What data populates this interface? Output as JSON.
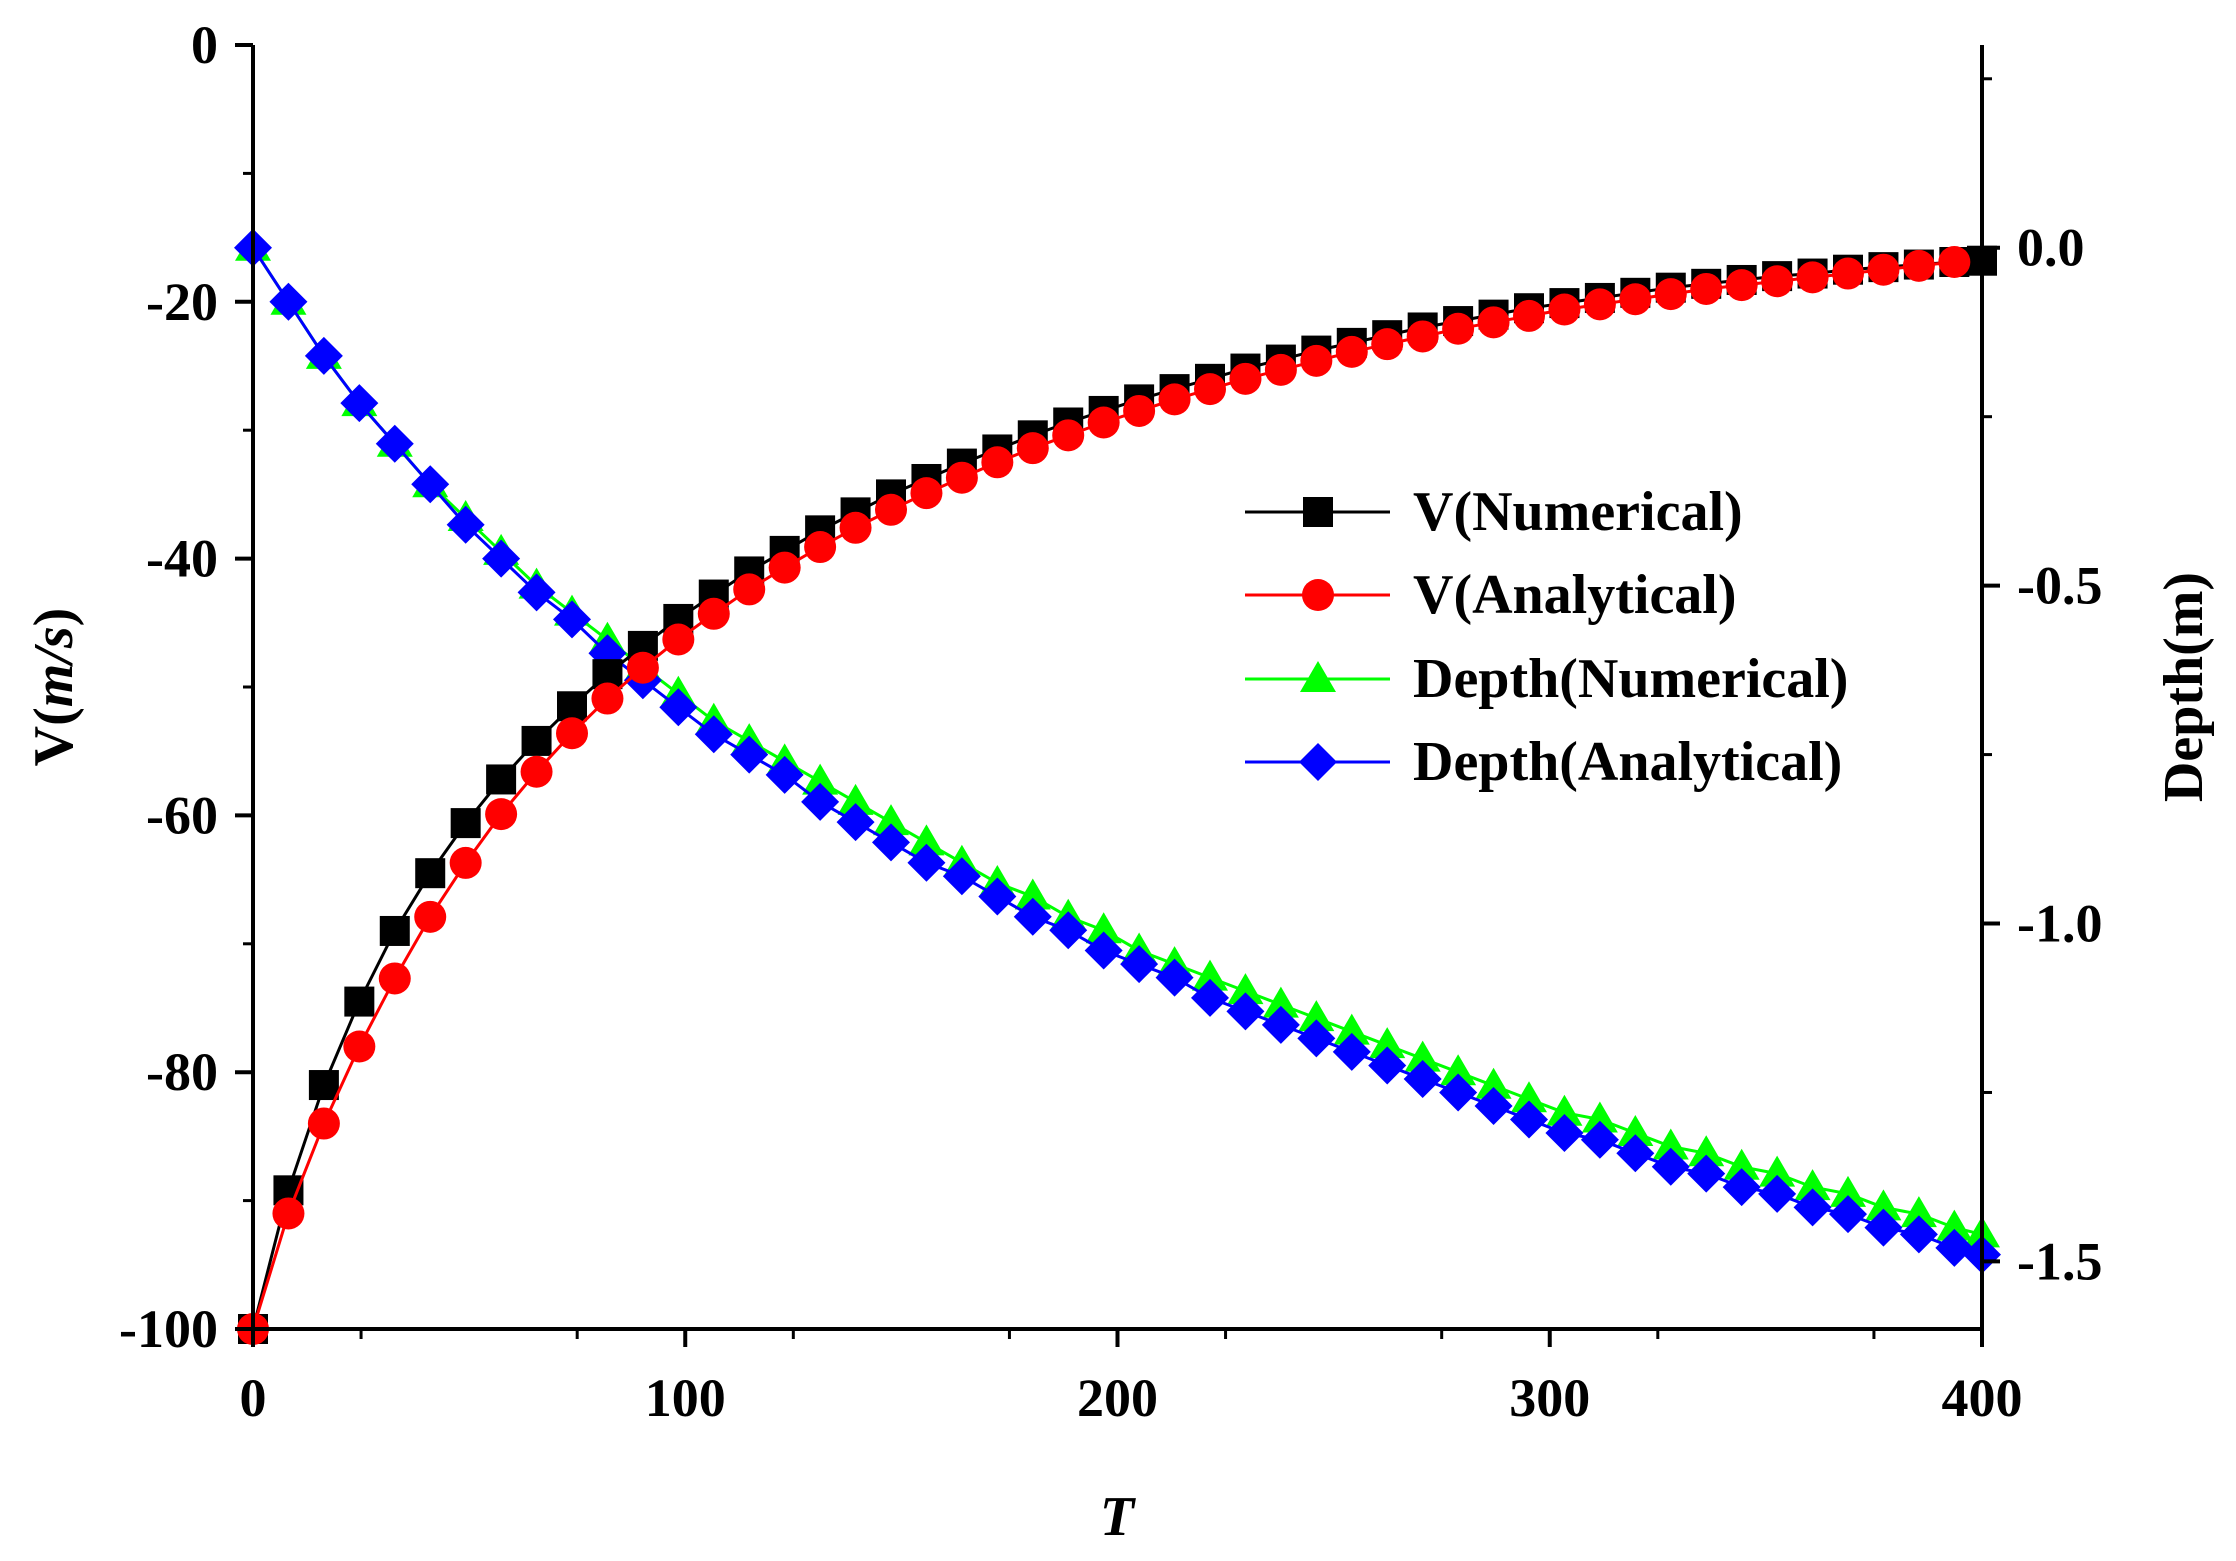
{
  "chart_data": {
    "type": "line",
    "title": "",
    "x_axis": {
      "label": "T",
      "range": [
        0,
        400
      ],
      "ticks": [
        0,
        100,
        200,
        300,
        400
      ],
      "tick_labels": [
        "0",
        "100",
        "200",
        "300",
        "400"
      ]
    },
    "y_left": {
      "label_prefix": "V(",
      "label_italic": "m/s",
      "label_suffix": ")",
      "range": [
        -100,
        0
      ],
      "ticks": [
        0,
        -20,
        -40,
        -60,
        -80,
        -100
      ],
      "tick_labels": [
        "0",
        "-20",
        "-40",
        "-60",
        "-80",
        "-100"
      ]
    },
    "y_right": {
      "label": "Depth(m)",
      "range": [
        -1.6,
        0.3
      ],
      "ticks": [
        0.0,
        -0.5,
        -1.0,
        -1.5
      ],
      "tick_labels": [
        "0.0",
        "-0.5",
        "-1.0",
        "-1.5"
      ]
    },
    "legend_position": "center-right",
    "grid": false,
    "series": [
      {
        "name": "V(Numerical)",
        "axis": "left",
        "color": "#000000",
        "marker": "square",
        "x": [
          0,
          8.2,
          16.4,
          24.6,
          32.8,
          41.0,
          49.2,
          57.4,
          65.6,
          73.8,
          82.0,
          90.2,
          98.4,
          106.6,
          114.8,
          123.0,
          131.2,
          139.4,
          147.6,
          155.8,
          164.0,
          172.2,
          180.4,
          188.6,
          196.8,
          205.0,
          213.2,
          221.4,
          229.6,
          237.8,
          246.0,
          254.2,
          262.4,
          270.6,
          278.8,
          287.0,
          295.2,
          303.4,
          311.6,
          319.8,
          328.0,
          336.2,
          344.4,
          352.6,
          360.8,
          369.0,
          377.2,
          385.4,
          393.6,
          400
        ],
        "values": [
          -100.0,
          -89.2,
          -81.0,
          -74.5,
          -69.0,
          -64.5,
          -60.6,
          -57.2,
          -54.2,
          -51.5,
          -49.0,
          -46.8,
          -44.7,
          -42.8,
          -41.0,
          -39.4,
          -37.8,
          -36.4,
          -35.0,
          -33.8,
          -32.6,
          -31.5,
          -30.4,
          -29.4,
          -28.5,
          -27.6,
          -26.8,
          -26.0,
          -25.2,
          -24.5,
          -23.8,
          -23.2,
          -22.6,
          -22.0,
          -21.5,
          -21.0,
          -20.5,
          -20.1,
          -19.7,
          -19.3,
          -18.9,
          -18.6,
          -18.3,
          -18.0,
          -17.8,
          -17.5,
          -17.3,
          -17.1,
          -16.9,
          -16.8
        ]
      },
      {
        "name": "V(Analytical)",
        "axis": "left",
        "color": "#ff0000",
        "marker": "circle",
        "x": [
          0,
          8.2,
          16.4,
          24.6,
          32.8,
          41.0,
          49.2,
          57.4,
          65.6,
          73.8,
          82.0,
          90.2,
          98.4,
          106.6,
          114.8,
          123.0,
          131.2,
          139.4,
          147.6,
          155.8,
          164.0,
          172.2,
          180.4,
          188.6,
          196.8,
          205.0,
          213.2,
          221.4,
          229.6,
          237.8,
          246.0,
          254.2,
          262.4,
          270.6,
          278.8,
          287.0,
          295.2,
          303.4,
          311.6,
          319.8,
          328.0,
          336.2,
          344.4,
          352.6,
          360.8,
          369.0,
          377.2,
          385.4,
          393.6
        ],
        "values": [
          -100.0,
          -91.0,
          -84.0,
          -78.0,
          -72.7,
          -67.9,
          -63.7,
          -59.9,
          -56.6,
          -53.6,
          -50.9,
          -48.5,
          -46.3,
          -44.3,
          -42.4,
          -40.7,
          -39.1,
          -37.6,
          -36.2,
          -34.9,
          -33.7,
          -32.5,
          -31.4,
          -30.4,
          -29.4,
          -28.5,
          -27.6,
          -26.8,
          -26.0,
          -25.3,
          -24.6,
          -23.9,
          -23.3,
          -22.7,
          -22.1,
          -21.6,
          -21.1,
          -20.6,
          -20.2,
          -19.8,
          -19.4,
          -19.0,
          -18.7,
          -18.4,
          -18.1,
          -17.8,
          -17.5,
          -17.2,
          -16.9
        ]
      },
      {
        "name": "Depth(Numerical)",
        "axis": "right",
        "color": "#00ff00",
        "marker": "triangle",
        "x": [
          0,
          8.2,
          16.4,
          24.6,
          32.8,
          41.0,
          49.2,
          57.4,
          65.6,
          73.8,
          82.0,
          90.2,
          98.4,
          106.6,
          114.8,
          123.0,
          131.2,
          139.4,
          147.6,
          155.8,
          164.0,
          172.2,
          180.4,
          188.6,
          196.8,
          205.0,
          213.2,
          221.4,
          229.6,
          237.8,
          246.0,
          254.2,
          262.4,
          270.6,
          278.8,
          287.0,
          295.2,
          303.4,
          311.6,
          319.8,
          328.0,
          336.2,
          344.4,
          352.6,
          360.8,
          369.0,
          377.2,
          385.4,
          393.6,
          400
        ],
        "values": [
          0.0,
          -0.08,
          -0.16,
          -0.23,
          -0.29,
          -0.35,
          -0.4,
          -0.45,
          -0.5,
          -0.54,
          -0.58,
          -0.62,
          -0.66,
          -0.7,
          -0.73,
          -0.76,
          -0.79,
          -0.82,
          -0.85,
          -0.88,
          -0.91,
          -0.94,
          -0.96,
          -0.99,
          -1.01,
          -1.04,
          -1.06,
          -1.08,
          -1.1,
          -1.12,
          -1.14,
          -1.16,
          -1.18,
          -1.2,
          -1.22,
          -1.24,
          -1.26,
          -1.28,
          -1.29,
          -1.31,
          -1.33,
          -1.34,
          -1.36,
          -1.37,
          -1.39,
          -1.4,
          -1.42,
          -1.43,
          -1.45,
          -1.46
        ]
      },
      {
        "name": "Depth(Analytical)",
        "axis": "right",
        "color": "#0000ff",
        "marker": "diamond",
        "x": [
          0,
          8.2,
          16.4,
          24.6,
          32.8,
          41.0,
          49.2,
          57.4,
          65.6,
          73.8,
          82.0,
          90.2,
          98.4,
          106.6,
          114.8,
          123.0,
          131.2,
          139.4,
          147.6,
          155.8,
          164.0,
          172.2,
          180.4,
          188.6,
          196.8,
          205.0,
          213.2,
          221.4,
          229.6,
          237.8,
          246.0,
          254.2,
          262.4,
          270.6,
          278.8,
          287.0,
          295.2,
          303.4,
          311.6,
          319.8,
          328.0,
          336.2,
          344.4,
          352.6,
          360.8,
          369.0,
          377.2,
          385.4,
          393.6,
          400
        ],
        "values": [
          0.0,
          -0.08,
          -0.16,
          -0.23,
          -0.29,
          -0.35,
          -0.41,
          -0.46,
          -0.51,
          -0.55,
          -0.6,
          -0.64,
          -0.68,
          -0.72,
          -0.75,
          -0.78,
          -0.82,
          -0.85,
          -0.88,
          -0.91,
          -0.93,
          -0.96,
          -0.99,
          -1.01,
          -1.04,
          -1.06,
          -1.08,
          -1.11,
          -1.13,
          -1.15,
          -1.17,
          -1.19,
          -1.21,
          -1.23,
          -1.25,
          -1.27,
          -1.29,
          -1.31,
          -1.32,
          -1.34,
          -1.36,
          -1.37,
          -1.39,
          -1.4,
          -1.42,
          -1.43,
          -1.45,
          -1.46,
          -1.48,
          -1.49
        ]
      }
    ]
  }
}
